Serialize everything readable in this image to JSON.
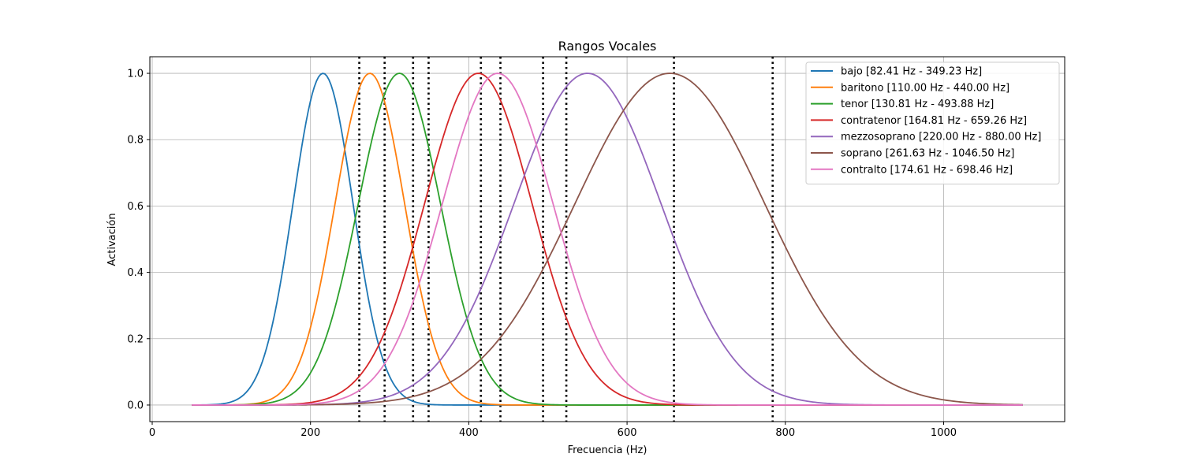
{
  "chart_data": {
    "type": "line",
    "title": "Rangos Vocales",
    "xlabel": "Frecuencia (Hz)",
    "ylabel": "Activación",
    "xlim": [
      -3,
      1153
    ],
    "ylim": [
      -0.05,
      1.05
    ],
    "xticks": [
      0,
      200,
      400,
      600,
      800,
      1000
    ],
    "yticks": [
      0.0,
      0.2,
      0.4,
      0.6,
      0.8,
      1.0
    ],
    "xtick_labels": [
      "0",
      "200",
      "400",
      "600",
      "800",
      "1000"
    ],
    "ytick_labels": [
      "0.0",
      "0.2",
      "0.4",
      "0.6",
      "0.8",
      "1.0"
    ],
    "grid": true,
    "legend_position": "top-right",
    "x_domain": [
      50,
      1100
    ],
    "series": [
      {
        "name": "bajo [82.41 Hz - 349.23 Hz]",
        "color": "#1f77b4",
        "peak_x": 215.82,
        "width": 38
      },
      {
        "name": "baritono [110.00 Hz - 440.00 Hz]",
        "color": "#ff7f0e",
        "peak_x": 275.0,
        "width": 44
      },
      {
        "name": "tenor [130.81 Hz - 493.88 Hz]",
        "color": "#2ca02c",
        "peak_x": 312.35,
        "width": 52
      },
      {
        "name": "contratenor [164.81 Hz - 659.26 Hz]",
        "color": "#d62728",
        "peak_x": 412.04,
        "width": 68
      },
      {
        "name": "mezzosoprano [220.00 Hz - 880.00 Hz]",
        "color": "#9467bd",
        "peak_x": 550.0,
        "width": 93
      },
      {
        "name": "soprano [261.63 Hz - 1046.50 Hz]",
        "color": "#8c564b",
        "peak_x": 654.07,
        "width": 120
      },
      {
        "name": "contralto [174.61 Hz - 698.46 Hz]",
        "color": "#e377c2",
        "peak_x": 436.54,
        "width": 70
      }
    ],
    "reference_lines": {
      "style": "dotted",
      "color": "#000000",
      "x": [
        261.63,
        293.66,
        329.63,
        349.23,
        415.3,
        440.0,
        493.88,
        523.25,
        659.26,
        783.99
      ]
    }
  }
}
